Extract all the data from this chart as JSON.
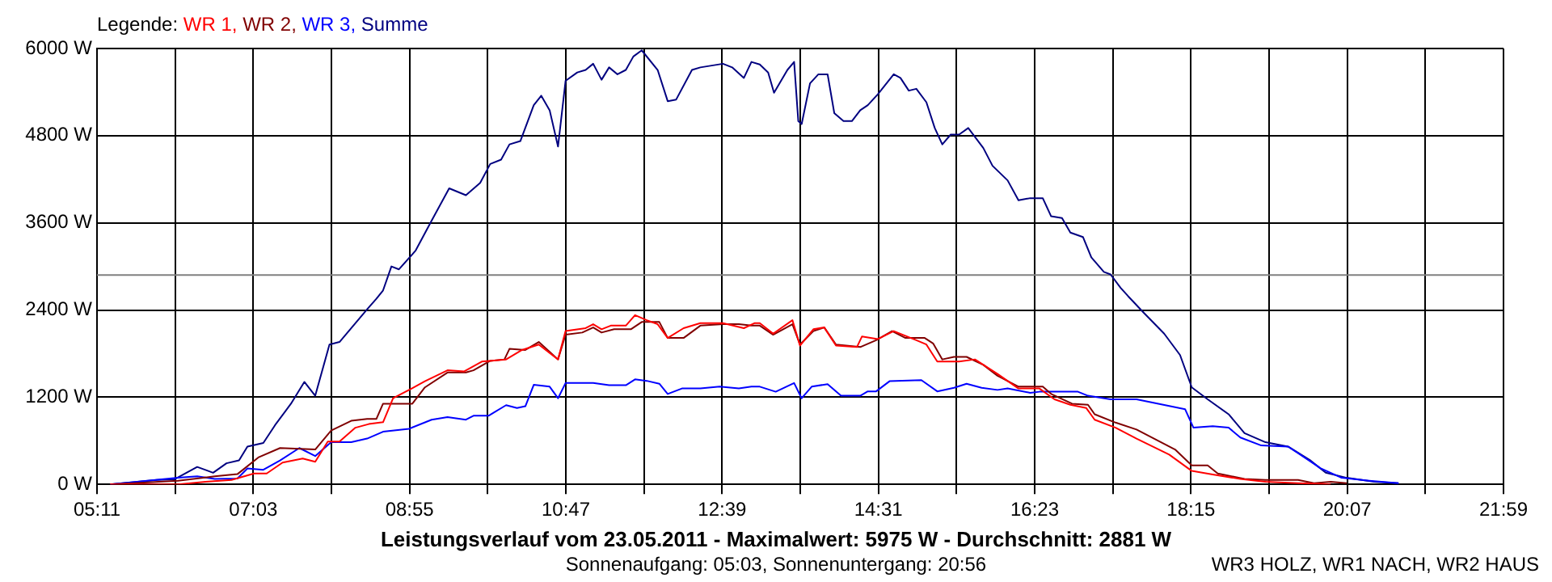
{
  "chart_data": {
    "type": "line",
    "title": "Leistungsverlauf vom 23.05.2011 - Maximalwert: 5975 W - Durchschnitt: 2881 W",
    "subtitle": "Sonnenaufgang: 05:03, Sonnenuntergang: 20:56",
    "legend_title": "Legende:",
    "legend": "top left",
    "grid": true,
    "xlim": [
      5.1833,
      21.9833
    ],
    "xticks": [
      {
        "value": 5.1833,
        "label": "05:11"
      },
      {
        "value": 6.1167,
        "label": null
      },
      {
        "value": 7.05,
        "label": "07:03"
      },
      {
        "value": 7.9833,
        "label": null
      },
      {
        "value": 8.9167,
        "label": "08:55"
      },
      {
        "value": 9.85,
        "label": null
      },
      {
        "value": 10.7833,
        "label": "10:47"
      },
      {
        "value": 11.7167,
        "label": null
      },
      {
        "value": 12.65,
        "label": "12:39"
      },
      {
        "value": 13.5833,
        "label": null
      },
      {
        "value": 14.5167,
        "label": "14:31"
      },
      {
        "value": 15.45,
        "label": null
      },
      {
        "value": 16.3833,
        "label": "16:23"
      },
      {
        "value": 17.3167,
        "label": null
      },
      {
        "value": 18.25,
        "label": "18:15"
      },
      {
        "value": 19.1833,
        "label": null
      },
      {
        "value": 20.1167,
        "label": "20:07"
      },
      {
        "value": 21.05,
        "label": null
      },
      {
        "value": 21.9833,
        "label": "21:59"
      }
    ],
    "ylim": [
      0,
      6000
    ],
    "yticks": [
      {
        "value": 0,
        "label": "0 W"
      },
      {
        "value": 1200,
        "label": "1200 W"
      },
      {
        "value": 2400,
        "label": "2400 W"
      },
      {
        "value": 3600,
        "label": "3600 W"
      },
      {
        "value": 4800,
        "label": "4800 W"
      },
      {
        "value": 6000,
        "label": "6000 W"
      }
    ],
    "ref_lines": [
      {
        "axis": "y",
        "value": 2881,
        "color": "#808080"
      }
    ],
    "annotations": [
      "WR3 HOLZ, WR1 NACH, WR2 HAUS"
    ],
    "series": [
      {
        "name": "WR 1,",
        "color": "#ff0000",
        "x": [
          5.34,
          6.15,
          6.48,
          6.79,
          7.06,
          7.21,
          7.4,
          7.64,
          7.79,
          7.94,
          8.08,
          8.27,
          8.43,
          8.6,
          8.72,
          8.91,
          9.1,
          9.37,
          9.57,
          9.78,
          10.07,
          10.26,
          10.46,
          10.69,
          10.78,
          11.02,
          11.11,
          11.21,
          11.32,
          11.5,
          11.61,
          11.75,
          11.88,
          12.0,
          12.19,
          12.39,
          12.66,
          12.91,
          13.04,
          13.1,
          13.26,
          13.49,
          13.58,
          13.74,
          13.87,
          14.01,
          14.26,
          14.32,
          14.51,
          14.7,
          14.97,
          15.09,
          15.22,
          15.48,
          15.67,
          15.94,
          16.19,
          16.44,
          16.62,
          16.81,
          17.0,
          17.1,
          17.35,
          17.6,
          17.99,
          18.26,
          18.51,
          18.84,
          19.14,
          19.53,
          19.92
        ],
        "values": [
          0,
          0,
          35,
          60,
          150,
          150,
          300,
          355,
          310,
          590,
          590,
          780,
          830,
          855,
          1185,
          1300,
          1420,
          1570,
          1555,
          1690,
          1720,
          1850,
          1925,
          1720,
          2110,
          2150,
          2205,
          2135,
          2185,
          2185,
          2330,
          2260,
          2205,
          2015,
          2150,
          2220,
          2220,
          2150,
          2220,
          2220,
          2075,
          2260,
          1910,
          2135,
          2160,
          1910,
          1890,
          2035,
          2000,
          2110,
          1985,
          1925,
          1690,
          1690,
          1720,
          1520,
          1320,
          1320,
          1170,
          1095,
          1050,
          890,
          780,
          630,
          410,
          185,
          135,
          75,
          35,
          15,
          0
        ]
      },
      {
        "name": "WR 2,",
        "color": "#800000",
        "x": [
          5.34,
          6.15,
          6.59,
          6.86,
          7.11,
          7.37,
          7.79,
          7.98,
          8.22,
          8.41,
          8.52,
          8.6,
          8.95,
          9.1,
          9.37,
          9.59,
          9.68,
          9.88,
          10.05,
          10.11,
          10.3,
          10.46,
          10.69,
          10.78,
          10.98,
          11.11,
          11.21,
          11.36,
          11.56,
          11.69,
          11.9,
          12.0,
          12.19,
          12.39,
          12.66,
          12.85,
          13.0,
          13.1,
          13.26,
          13.49,
          13.58,
          13.74,
          13.87,
          14.01,
          14.3,
          14.49,
          14.68,
          14.84,
          15.07,
          15.17,
          15.28,
          15.42,
          15.57,
          15.77,
          15.94,
          16.19,
          16.48,
          16.58,
          16.83,
          17.02,
          17.1,
          17.35,
          17.6,
          18.06,
          18.26,
          18.45,
          18.57,
          18.89,
          19.14,
          19.53,
          19.72,
          19.92,
          20.11
        ],
        "values": [
          0,
          50,
          110,
          140,
          370,
          500,
          480,
          740,
          875,
          900,
          900,
          1110,
          1110,
          1335,
          1540,
          1540,
          1570,
          1700,
          1720,
          1865,
          1850,
          1960,
          1720,
          2060,
          2090,
          2160,
          2090,
          2135,
          2135,
          2235,
          2235,
          2015,
          2015,
          2185,
          2205,
          2205,
          2185,
          2185,
          2060,
          2205,
          1925,
          2110,
          2160,
          1925,
          1890,
          1985,
          2110,
          2015,
          2015,
          1940,
          1720,
          1755,
          1755,
          1645,
          1495,
          1345,
          1345,
          1245,
          1110,
          1095,
          965,
          850,
          755,
          480,
          260,
          260,
          150,
          75,
          60,
          60,
          15,
          35,
          15
        ]
      },
      {
        "name": "WR 3,",
        "color": "#0000ff",
        "x": [
          5.34,
          6.15,
          6.38,
          6.59,
          6.86,
          6.98,
          7.17,
          7.37,
          7.6,
          7.79,
          7.98,
          8.22,
          8.41,
          8.6,
          8.91,
          9.18,
          9.37,
          9.59,
          9.68,
          9.86,
          10.07,
          10.2,
          10.3,
          10.4,
          10.59,
          10.69,
          10.78,
          11.11,
          11.3,
          11.5,
          11.61,
          11.75,
          11.9,
          12.0,
          12.17,
          12.39,
          12.62,
          12.85,
          13.0,
          13.1,
          13.29,
          13.51,
          13.6,
          13.72,
          13.91,
          14.07,
          14.3,
          14.39,
          14.49,
          14.65,
          15.03,
          15.22,
          15.42,
          15.57,
          15.75,
          15.94,
          16.06,
          16.33,
          16.44,
          16.71,
          16.9,
          17.02,
          17.29,
          17.6,
          17.79,
          18.18,
          18.28,
          18.51,
          18.7,
          18.84,
          19.09,
          19.41,
          19.53,
          19.8,
          20.05,
          20.38,
          20.73
        ],
        "values": [
          0,
          90,
          110,
          75,
          80,
          220,
          200,
          330,
          500,
          390,
          580,
          580,
          630,
          725,
          765,
          890,
          925,
          890,
          945,
          945,
          1090,
          1050,
          1075,
          1370,
          1345,
          1185,
          1395,
          1395,
          1365,
          1365,
          1445,
          1425,
          1385,
          1245,
          1320,
          1320,
          1345,
          1320,
          1345,
          1345,
          1275,
          1395,
          1185,
          1345,
          1380,
          1220,
          1220,
          1280,
          1280,
          1420,
          1435,
          1280,
          1330,
          1385,
          1330,
          1300,
          1320,
          1260,
          1275,
          1275,
          1275,
          1220,
          1170,
          1170,
          1125,
          1035,
          780,
          800,
          780,
          645,
          535,
          520,
          430,
          220,
          90,
          50,
          15
        ]
      },
      {
        "name": "Summe",
        "color": "#000080",
        "x": [
          5.34,
          5.9,
          6.11,
          6.38,
          6.57,
          6.73,
          6.88,
          6.98,
          7.17,
          7.31,
          7.5,
          7.66,
          7.79,
          7.96,
          8.08,
          8.41,
          8.52,
          8.6,
          8.7,
          8.79,
          8.99,
          9.18,
          9.39,
          9.59,
          9.76,
          9.88,
          10.01,
          10.11,
          10.24,
          10.4,
          10.49,
          10.59,
          10.69,
          10.78,
          10.92,
          11.02,
          11.11,
          11.21,
          11.3,
          11.4,
          11.5,
          11.59,
          11.69,
          11.88,
          12.0,
          12.1,
          12.29,
          12.39,
          12.66,
          12.77,
          12.91,
          13.0,
          13.1,
          13.2,
          13.27,
          13.43,
          13.51,
          13.56,
          13.6,
          13.7,
          13.8,
          13.91,
          13.99,
          14.1,
          14.2,
          14.3,
          14.39,
          14.51,
          14.7,
          14.78,
          14.88,
          14.97,
          15.09,
          15.19,
          15.28,
          15.38,
          15.48,
          15.59,
          15.77,
          15.88,
          16.06,
          16.19,
          16.33,
          16.48,
          16.58,
          16.71,
          16.81,
          16.96,
          17.06,
          17.21,
          17.29,
          17.41,
          17.5,
          17.68,
          17.93,
          18.12,
          18.26,
          18.45,
          18.7,
          18.89,
          19.14,
          19.41,
          19.67,
          19.86,
          20.11,
          20.44,
          20.73
        ],
        "values": [
          0,
          60,
          70,
          240,
          160,
          290,
          330,
          520,
          570,
          815,
          1110,
          1410,
          1220,
          1925,
          1960,
          2410,
          2555,
          2670,
          3000,
          2960,
          3220,
          3630,
          4075,
          3980,
          4150,
          4410,
          4470,
          4680,
          4725,
          5220,
          5350,
          5150,
          4650,
          5555,
          5670,
          5705,
          5790,
          5570,
          5740,
          5645,
          5705,
          5890,
          5975,
          5705,
          5275,
          5295,
          5705,
          5740,
          5790,
          5740,
          5595,
          5815,
          5780,
          5670,
          5390,
          5705,
          5815,
          5000,
          4960,
          5520,
          5645,
          5645,
          5110,
          5000,
          5000,
          5150,
          5220,
          5370,
          5645,
          5595,
          5420,
          5445,
          5260,
          4905,
          4680,
          4815,
          4815,
          4905,
          4630,
          4385,
          4185,
          3910,
          3940,
          3940,
          3690,
          3665,
          3465,
          3405,
          3125,
          2925,
          2890,
          2705,
          2590,
          2370,
          2075,
          1780,
          1335,
          1170,
          965,
          705,
          580,
          520,
          335,
          160,
          90,
          35,
          15
        ]
      }
    ]
  }
}
